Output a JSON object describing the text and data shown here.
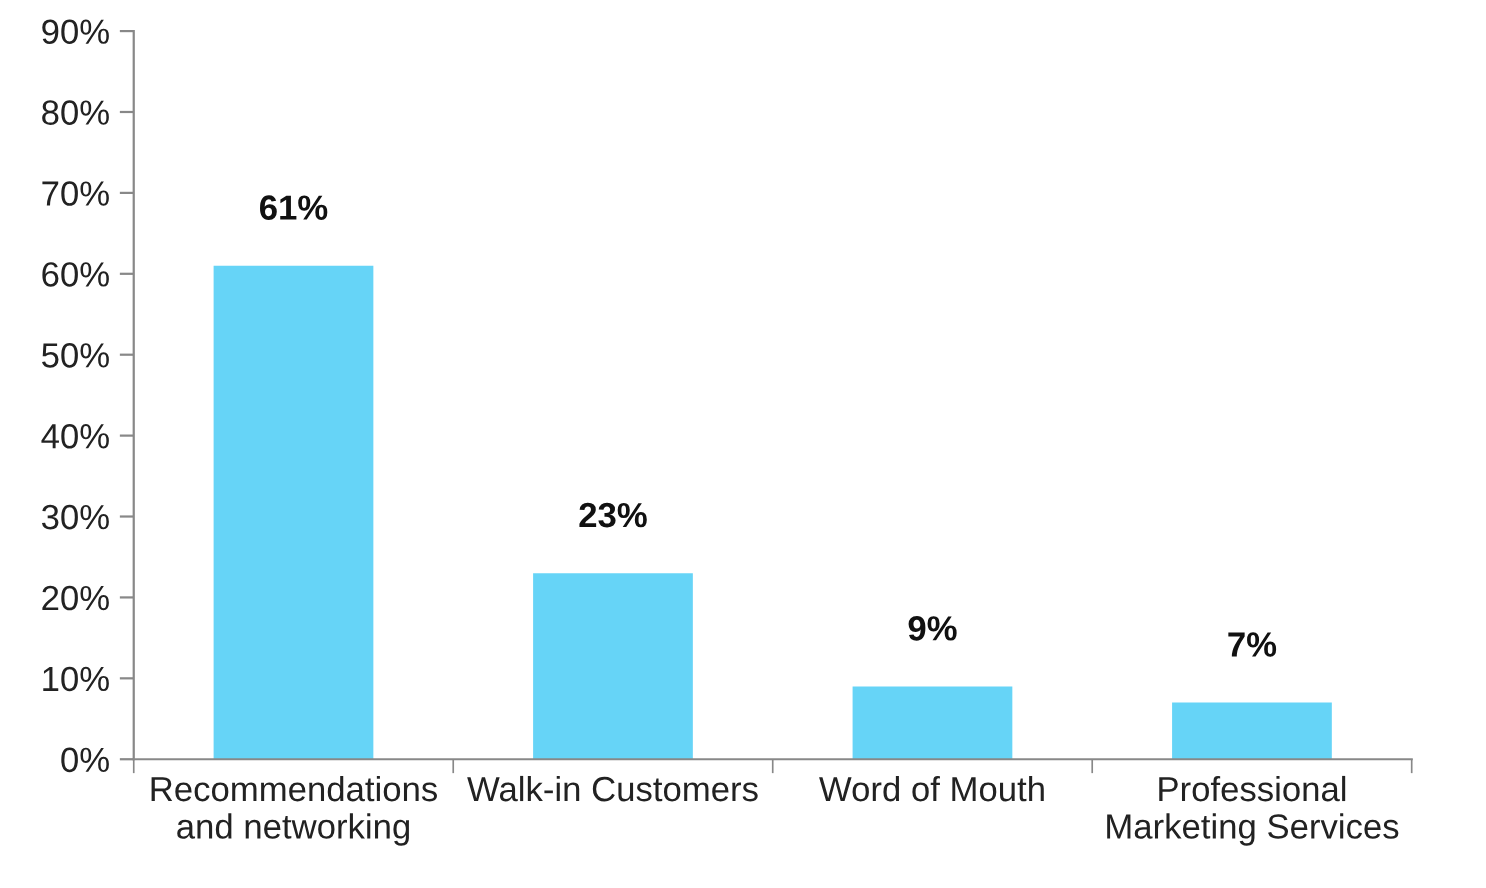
{
  "chart_data": {
    "type": "bar",
    "categories": [
      "Recommendations\nand networking",
      "Walk-in Customers",
      "Word of Mouth",
      "Professional\nMarketing Services"
    ],
    "values": [
      61,
      23,
      9,
      7
    ],
    "value_labels": [
      "61%",
      "23%",
      "9%",
      "7%"
    ],
    "color": "#66d4f7",
    "ylim": [
      0,
      90
    ],
    "yticks": [
      {
        "value": 0,
        "label": "0%"
      },
      {
        "value": 10,
        "label": "10%"
      },
      {
        "value": 20,
        "label": "20%"
      },
      {
        "value": 30,
        "label": "30%"
      },
      {
        "value": 40,
        "label": "40%"
      },
      {
        "value": 50,
        "label": "50%"
      },
      {
        "value": 60,
        "label": "60%"
      },
      {
        "value": 70,
        "label": "70%"
      },
      {
        "value": 80,
        "label": "80%"
      },
      {
        "value": 90,
        "label": "90%"
      }
    ],
    "grid": false,
    "legend": false
  }
}
